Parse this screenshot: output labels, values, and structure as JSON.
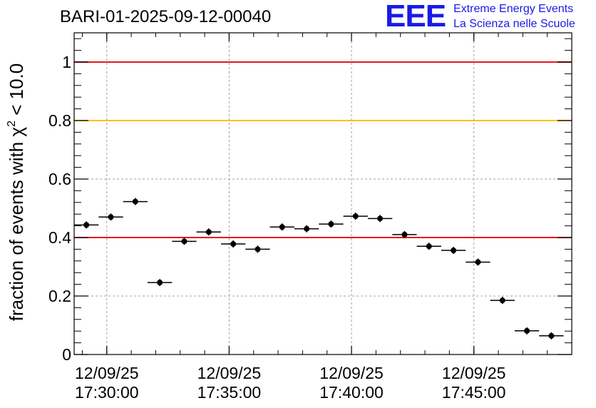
{
  "title": "BARI-01-2025-09-12-00040",
  "logo": {
    "mark": "EEE",
    "line1": "Extreme Energy Events",
    "line2": "La Scienza nelle Scuole"
  },
  "colors": {
    "red_line": "#e41a1c",
    "orange_line": "#ffc000",
    "marker": "#000000",
    "grid": "#a0a0a0",
    "logo": "#1a1ae6"
  },
  "chart_data": {
    "type": "scatter",
    "title": "BARI-01-2025-09-12-00040",
    "ylabel_parts": {
      "pre": "fraction of events with ",
      "sym": "χ",
      "sup": "2",
      "post": " < 10.0"
    },
    "xlabel": "",
    "xlim": [
      "17:28:40",
      "17:49:00"
    ],
    "ylim": [
      0,
      1.1
    ],
    "grid": true,
    "x_ticks": [
      {
        "t": "17:30:00",
        "date": "12/09/25",
        "time": "17:30:00"
      },
      {
        "t": "17:35:00",
        "date": "12/09/25",
        "time": "17:35:00"
      },
      {
        "t": "17:40:00",
        "date": "12/09/25",
        "time": "17:40:00"
      },
      {
        "t": "17:45:00",
        "date": "12/09/25",
        "time": "17:45:00"
      }
    ],
    "y_ticks": [
      {
        "v": 0,
        "label": "0"
      },
      {
        "v": 0.2,
        "label": "0.2"
      },
      {
        "v": 0.4,
        "label": "0.4"
      },
      {
        "v": 0.6,
        "label": "0.6"
      },
      {
        "v": 0.8,
        "label": "0.8"
      },
      {
        "v": 1.0,
        "label": "1"
      }
    ],
    "reference_lines": [
      {
        "y": 1.0,
        "color": "#e41a1c"
      },
      {
        "y": 0.8,
        "color": "#ffc000"
      },
      {
        "y": 0.4,
        "color": "#e41a1c"
      }
    ],
    "points": [
      {
        "x_start": "17:28:40",
        "x_end": "17:29:40",
        "y": 0.443
      },
      {
        "x_start": "17:29:40",
        "x_end": "17:30:40",
        "y": 0.47
      },
      {
        "x_start": "17:30:40",
        "x_end": "17:31:40",
        "y": 0.523
      },
      {
        "x_start": "17:31:40",
        "x_end": "17:32:40",
        "y": 0.246
      },
      {
        "x_start": "17:32:40",
        "x_end": "17:33:40",
        "y": 0.387
      },
      {
        "x_start": "17:33:40",
        "x_end": "17:34:40",
        "y": 0.419
      },
      {
        "x_start": "17:34:40",
        "x_end": "17:35:40",
        "y": 0.378
      },
      {
        "x_start": "17:35:40",
        "x_end": "17:36:40",
        "y": 0.36
      },
      {
        "x_start": "17:36:40",
        "x_end": "17:37:40",
        "y": 0.436
      },
      {
        "x_start": "17:37:40",
        "x_end": "17:38:40",
        "y": 0.43
      },
      {
        "x_start": "17:38:40",
        "x_end": "17:39:40",
        "y": 0.446
      },
      {
        "x_start": "17:39:40",
        "x_end": "17:40:40",
        "y": 0.473
      },
      {
        "x_start": "17:40:40",
        "x_end": "17:41:40",
        "y": 0.465
      },
      {
        "x_start": "17:41:40",
        "x_end": "17:42:40",
        "y": 0.41
      },
      {
        "x_start": "17:42:40",
        "x_end": "17:43:40",
        "y": 0.37
      },
      {
        "x_start": "17:43:40",
        "x_end": "17:44:40",
        "y": 0.356
      },
      {
        "x_start": "17:44:40",
        "x_end": "17:45:40",
        "y": 0.316
      },
      {
        "x_start": "17:45:40",
        "x_end": "17:46:40",
        "y": 0.185
      },
      {
        "x_start": "17:46:40",
        "x_end": "17:47:40",
        "y": 0.081
      },
      {
        "x_start": "17:47:40",
        "x_end": "17:48:40",
        "y": 0.064
      }
    ]
  }
}
